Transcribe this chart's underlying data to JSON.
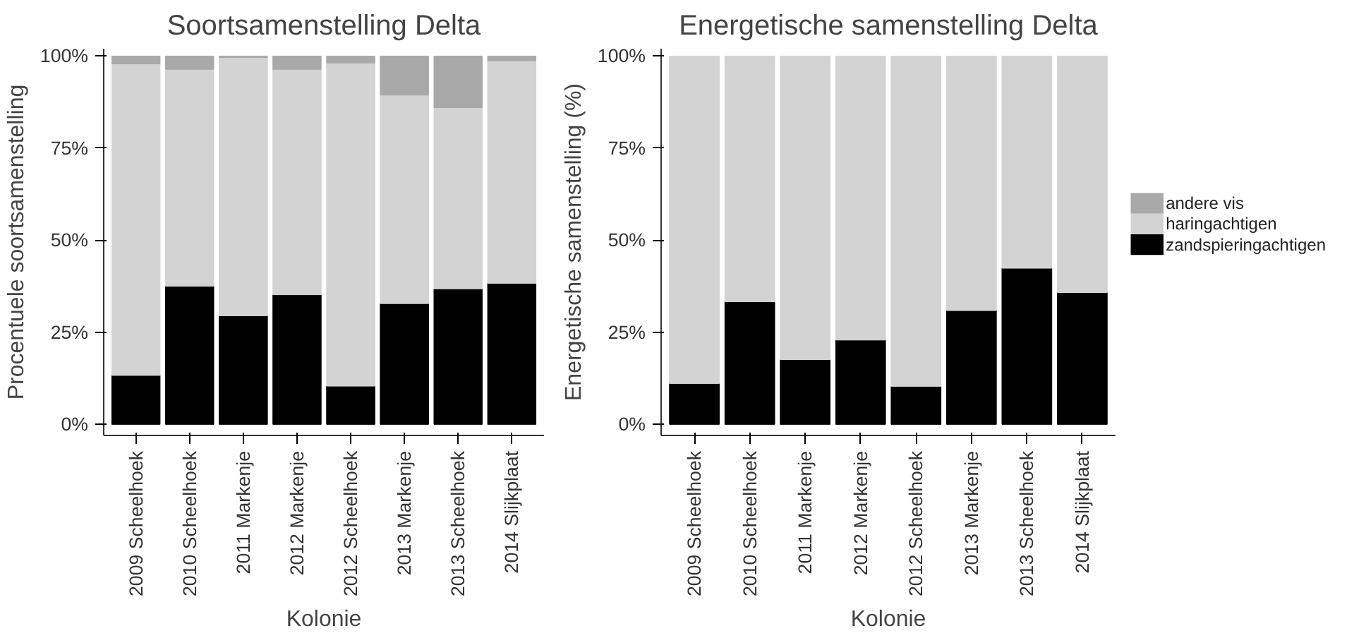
{
  "chart_data": [
    {
      "type": "bar",
      "title": "Soortsamenstelling Delta",
      "xlabel": "Kolonie",
      "ylabel": "Procentuele soortsamenstelling",
      "stacked": true,
      "categories": [
        "2009 Scheelhoek",
        "2010 Scheelhoek",
        "2011 Markenje",
        "2012 Markenje",
        "2012 Scheelhoek",
        "2013 Markenje",
        "2013 Scheelhoek",
        "2014 Slijkplaat"
      ],
      "series": [
        {
          "name": "zandspieringachtigen",
          "color": "#000000",
          "values": [
            13.3,
            37.5,
            29.5,
            35.2,
            10.4,
            32.8,
            36.8,
            38.3
          ]
        },
        {
          "name": "haringachtigen",
          "color": "#d3d3d3",
          "values": [
            84.6,
            58.9,
            70.1,
            61.2,
            87.7,
            56.6,
            49.2,
            60.4
          ]
        },
        {
          "name": "andere vis",
          "color": "#a9a9a9",
          "values": [
            2.1,
            3.6,
            0.4,
            3.6,
            1.9,
            10.6,
            14.0,
            1.3
          ]
        }
      ],
      "ylim": [
        -3,
        102
      ],
      "yticks": [
        {
          "value": 0,
          "label": "0%"
        },
        {
          "value": 25,
          "label": "25%"
        },
        {
          "value": 50,
          "label": "50%"
        },
        {
          "value": 75,
          "label": "75%"
        },
        {
          "value": 100,
          "label": "100%"
        }
      ],
      "grid": false,
      "legend": "right"
    },
    {
      "type": "bar",
      "title": "Energetische samenstelling Delta",
      "xlabel": "Kolonie",
      "ylabel": "Energetische samenstelling (%)",
      "stacked": true,
      "categories": [
        "2009 Scheelhoek",
        "2010 Scheelhoek",
        "2011 Markenje",
        "2012 Markenje",
        "2012 Scheelhoek",
        "2013 Markenje",
        "2013 Scheelhoek",
        "2014 Slijkplaat"
      ],
      "series": [
        {
          "name": "zandspieringachtigen",
          "color": "#000000",
          "values": [
            11.1,
            33.3,
            17.6,
            22.9,
            10.3,
            30.9,
            42.4,
            35.8
          ]
        },
        {
          "name": "haringachtigen",
          "color": "#d3d3d3",
          "values": [
            88.9,
            66.7,
            82.4,
            77.1,
            89.7,
            69.1,
            57.6,
            64.2
          ]
        }
      ],
      "ylim": [
        -3,
        102
      ],
      "yticks": [
        {
          "value": 0,
          "label": "0%"
        },
        {
          "value": 25,
          "label": "25%"
        },
        {
          "value": 50,
          "label": "50%"
        },
        {
          "value": 75,
          "label": "75%"
        },
        {
          "value": 100,
          "label": "100%"
        }
      ],
      "grid": false,
      "legend": "right"
    }
  ]
}
